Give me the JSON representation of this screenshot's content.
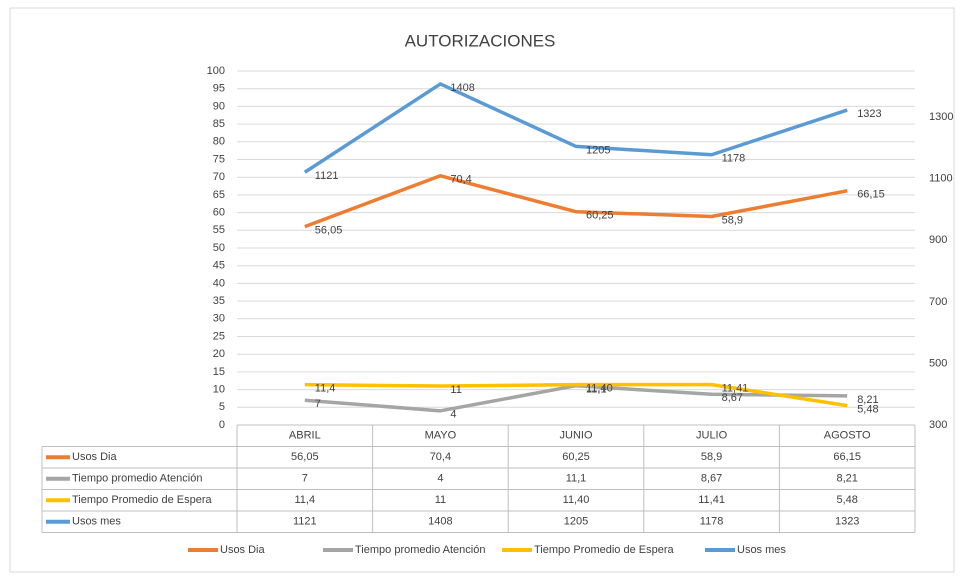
{
  "chart_data": {
    "type": "line",
    "title": "AUTORIZACIONES",
    "categories": [
      "ABRIL",
      "MAYO",
      "JUNIO",
      "JULIO",
      "AGOSTO"
    ],
    "series": [
      {
        "name": "Usos Dia",
        "color": "#ed7d31",
        "values": [
          56.05,
          70.4,
          60.25,
          58.9,
          66.15
        ],
        "value_labels": [
          "56,05",
          "70,4",
          "60,25",
          "58,9",
          "66,15"
        ]
      },
      {
        "name": "Tiempo promedio Atención",
        "color": "#a5a5a5",
        "values": [
          7,
          4,
          11.1,
          8.67,
          8.21
        ],
        "value_labels": [
          "7",
          "4",
          "11,1",
          "8,67",
          "8,21"
        ]
      },
      {
        "name": "Tiempo Promedio de Espera",
        "color": "#ffc000",
        "values": [
          11.4,
          11,
          11.4,
          11.41,
          5.48
        ],
        "value_labels": [
          "11,4",
          "11",
          "11,40",
          "11,41",
          "5,48"
        ]
      },
      {
        "name": "Usos mes",
        "color": "#5b9bd5",
        "axis": "y2",
        "values": [
          1121,
          1408,
          1205,
          1178,
          1323
        ]
      }
    ],
    "ylim": [
      0,
      100
    ],
    "yticks": [
      0,
      5,
      10,
      15,
      20,
      25,
      30,
      35,
      40,
      45,
      50,
      55,
      60,
      65,
      70,
      75,
      80,
      85,
      90,
      95,
      100
    ],
    "y2lim": [
      300,
      1450
    ],
    "y2ticks": [
      300,
      500,
      700,
      900,
      1100,
      1300
    ],
    "grid": true,
    "legend": "bottom"
  }
}
